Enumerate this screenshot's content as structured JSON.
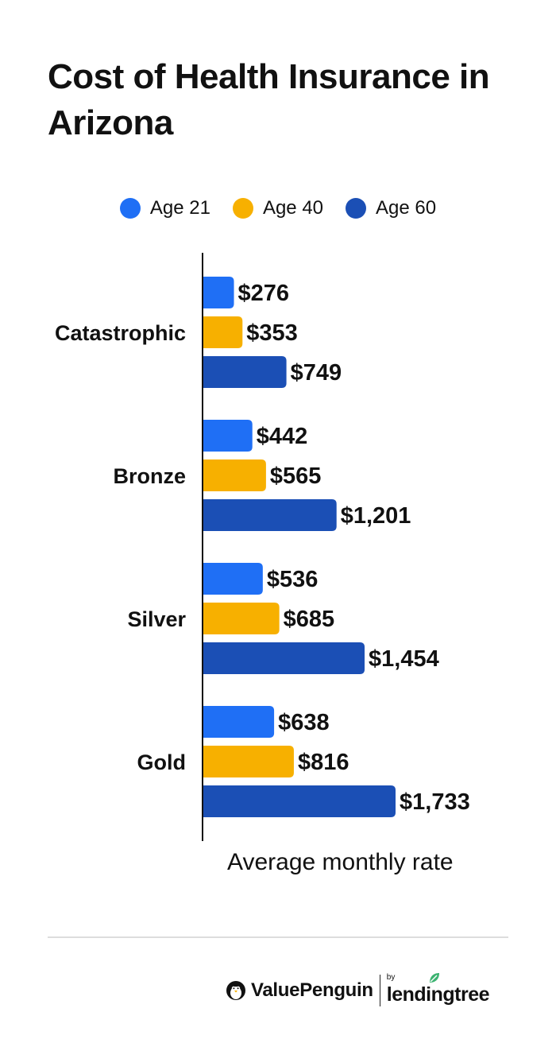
{
  "title": "Cost of Health Insurance in Arizona",
  "brand": {
    "valuepenguin": "ValuePenguin",
    "by": "by",
    "lendingtree": "lendingtree"
  },
  "chart_data": {
    "type": "bar",
    "orientation": "horizontal",
    "title": "Cost of Health Insurance in Arizona",
    "xlabel": "Average monthly rate",
    "ylabel": "",
    "categories": [
      "Catastrophic",
      "Bronze",
      "Silver",
      "Gold"
    ],
    "series": [
      {
        "name": "Age 21",
        "color": "#1f6ff5",
        "values": [
          276,
          442,
          536,
          638
        ],
        "labels": [
          "$276",
          "$442",
          "$536",
          "$638"
        ]
      },
      {
        "name": "Age 40",
        "color": "#f7b000",
        "values": [
          353,
          565,
          685,
          816
        ],
        "labels": [
          "$353",
          "$565",
          "$685",
          "$816"
        ]
      },
      {
        "name": "Age 60",
        "color": "#1b4fb5",
        "values": [
          749,
          1201,
          1454,
          1733
        ],
        "labels": [
          "$749",
          "$1,201",
          "$1,454",
          "$1,733"
        ]
      }
    ],
    "xlim": [
      0,
      1733
    ],
    "grid": false,
    "legend_position": "top"
  }
}
